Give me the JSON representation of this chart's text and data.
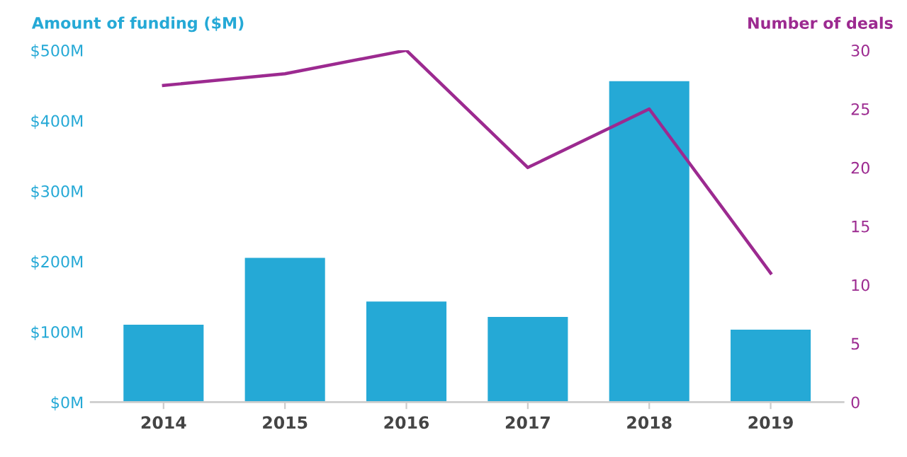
{
  "chart_data": {
    "type": "bar",
    "ylabel": "Amount of funding ($M)",
    "y2label": "Number of deals",
    "categories": [
      "2014",
      "2015",
      "2016",
      "2017",
      "2018",
      "2019"
    ],
    "series": [
      {
        "color": "#25a9d6",
        "values": [
          110,
          205,
          143,
          121,
          456,
          103
        ]
      },
      {
        "type": "line",
        "axis": "y2",
        "color": "#9c2a90",
        "values": [
          27,
          28,
          30,
          20,
          25,
          11
        ]
      }
    ],
    "ylim": [
      0,
      500
    ],
    "yticks": [
      {
        "value": 0,
        "label": "$0M"
      },
      {
        "value": 100,
        "label": "$100M"
      },
      {
        "value": 200,
        "label": "$200M"
      },
      {
        "value": 300,
        "label": "$300M"
      },
      {
        "value": 400,
        "label": "$400M"
      },
      {
        "value": 500,
        "label": "$500M"
      }
    ],
    "y2lim": [
      0,
      30
    ],
    "y2ticks": [
      0,
      5,
      10,
      15,
      20,
      25,
      30
    ],
    "grid": false,
    "marker": "none"
  }
}
